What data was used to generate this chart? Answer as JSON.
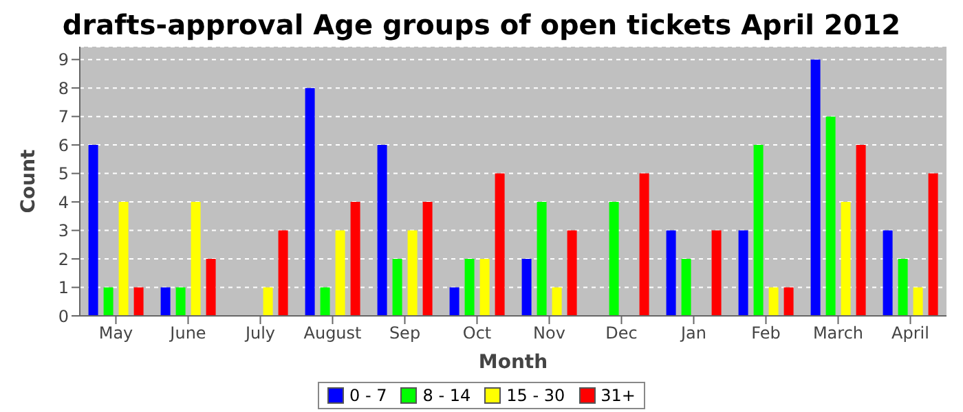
{
  "chart_data": {
    "type": "bar",
    "title": "drafts-approval Age groups of open tickets April 2012",
    "xlabel": "Month",
    "ylabel": "Count",
    "categories": [
      "May",
      "June",
      "July",
      "August",
      "Sep",
      "Oct",
      "Nov",
      "Dec",
      "Jan",
      "Feb",
      "March",
      "April"
    ],
    "series": [
      {
        "name": "0 - 7",
        "color": "#0000ff",
        "values": [
          6,
          1,
          0,
          8,
          6,
          1,
          2,
          0,
          3,
          3,
          9,
          3
        ]
      },
      {
        "name": "8 - 14",
        "color": "#00ff00",
        "values": [
          1,
          1,
          0,
          1,
          2,
          2,
          4,
          4,
          2,
          6,
          7,
          2
        ]
      },
      {
        "name": "15 - 30",
        "color": "#ffff00",
        "values": [
          4,
          4,
          1,
          3,
          3,
          2,
          1,
          0,
          0,
          1,
          4,
          1
        ]
      },
      {
        "name": "31+",
        "color": "#ff0000",
        "values": [
          1,
          2,
          3,
          4,
          4,
          5,
          3,
          5,
          3,
          1,
          6,
          5
        ]
      }
    ],
    "ylim": [
      0,
      9.45
    ],
    "yticks": [
      0,
      1,
      2,
      3,
      4,
      5,
      6,
      7,
      8,
      9
    ],
    "grid": "y",
    "legend": "bottom"
  }
}
